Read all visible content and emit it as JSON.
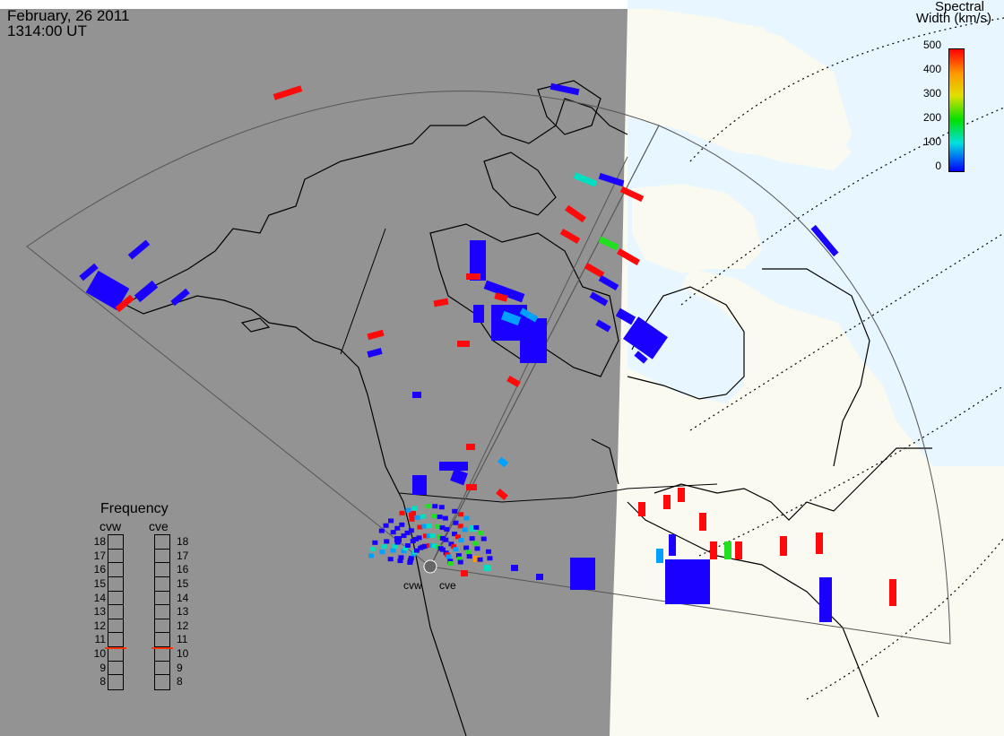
{
  "header": {
    "date": "February, 26 2011",
    "time": "1314:00 UT"
  },
  "colorbar": {
    "title_line1": "Spectral",
    "title_line2": "Width (km/s)",
    "ticks": [
      "500",
      "400",
      "300",
      "200",
      "100",
      "0"
    ],
    "colors": [
      "#ff0000",
      "#ff9900",
      "#e0e000",
      "#00e000",
      "#00e0e0",
      "#0000ff"
    ]
  },
  "frequency": {
    "title": "Frequency",
    "radars": [
      "cvw",
      "cve"
    ],
    "levels": [
      "18",
      "17",
      "16",
      "15",
      "14",
      "13",
      "12",
      "11",
      "10",
      "9",
      "8"
    ],
    "selected": [
      10.5,
      10.5
    ]
  },
  "radar_labels": [
    "cvw",
    "cve"
  ],
  "colors": {
    "night": "#939393",
    "day": "#fafaf0",
    "ocean_day": "#e8f6ff",
    "scatter_low": "#1a00ff",
    "scatter_high": "#ff0a0a"
  }
}
